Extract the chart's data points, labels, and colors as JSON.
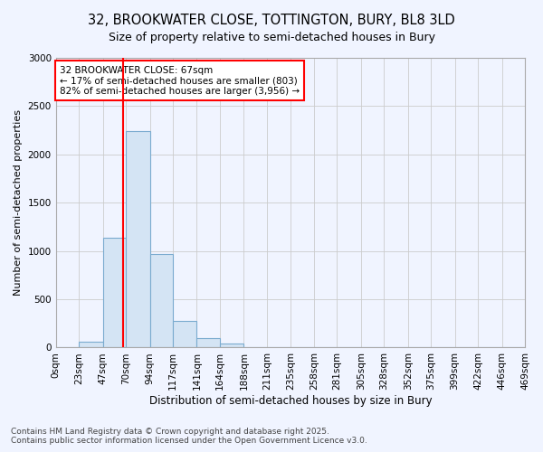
{
  "title_line1": "32, BROOKWATER CLOSE, TOTTINGTON, BURY, BL8 3LD",
  "title_line2": "Size of property relative to semi-detached houses in Bury",
  "xlabel": "Distribution of semi-detached houses by size in Bury",
  "ylabel": "Number of semi-detached properties",
  "bin_labels": [
    "0sqm",
    "23sqm",
    "47sqm",
    "70sqm",
    "94sqm",
    "117sqm",
    "141sqm",
    "164sqm",
    "188sqm",
    "211sqm",
    "235sqm",
    "258sqm",
    "281sqm",
    "305sqm",
    "328sqm",
    "352sqm",
    "375sqm",
    "399sqm",
    "422sqm",
    "446sqm",
    "469sqm"
  ],
  "bin_edges": [
    0,
    23,
    47,
    70,
    94,
    117,
    141,
    164,
    188,
    211,
    235,
    258,
    281,
    305,
    328,
    352,
    375,
    399,
    422,
    446,
    469
  ],
  "bar_heights": [
    0,
    60,
    1140,
    2240,
    970,
    275,
    100,
    40,
    0,
    0,
    0,
    0,
    0,
    0,
    0,
    0,
    0,
    0,
    0,
    0
  ],
  "bar_color": "#d4e4f4",
  "bar_edge_color": "#7aabcf",
  "property_size": 67,
  "vline_color": "red",
  "annotation_line1": "32 BROOKWATER CLOSE: 67sqm",
  "annotation_line2": "← 17% of semi-detached houses are smaller (803)",
  "annotation_line3": "82% of semi-detached houses are larger (3,956) →",
  "annotation_box_color": "white",
  "annotation_box_edge_color": "red",
  "ylim": [
    0,
    3000
  ],
  "yticks": [
    0,
    500,
    1000,
    1500,
    2000,
    2500,
    3000
  ],
  "grid_color": "#cccccc",
  "background_color": "#f0f4ff",
  "footer_line1": "Contains HM Land Registry data © Crown copyright and database right 2025.",
  "footer_line2": "Contains public sector information licensed under the Open Government Licence v3.0.",
  "title_fontsize": 10.5,
  "subtitle_fontsize": 9,
  "axis_label_fontsize": 8.5,
  "tick_fontsize": 7.5,
  "annotation_fontsize": 7.5,
  "footer_fontsize": 6.5,
  "ylabel_fontsize": 8
}
